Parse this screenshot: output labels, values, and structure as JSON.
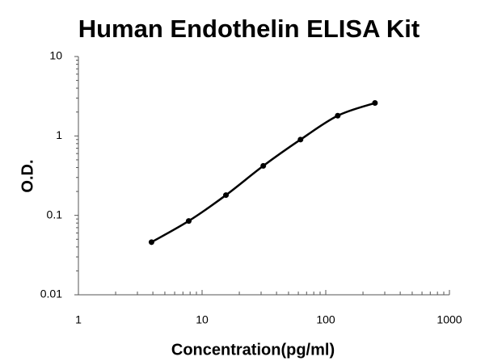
{
  "chart_data": {
    "type": "scatter",
    "title": "Human Endothelin ELISA Kit",
    "x_label": "Concentration(pg/ml)",
    "y_label": "O.D.",
    "x": [
      3.9,
      7.8,
      15.6,
      31.25,
      62.5,
      125,
      250
    ],
    "series": [
      {
        "color": "#000000",
        "values": [
          0.046,
          0.085,
          0.18,
          0.42,
          0.9,
          1.8,
          2.6
        ]
      }
    ],
    "xlim": [
      1,
      1000
    ],
    "ylim": [
      0.01,
      10
    ],
    "xticks": [
      1,
      10,
      100,
      1000
    ],
    "yticks": [
      0.01,
      0.1,
      1,
      10
    ],
    "x_log": true,
    "y_log": true,
    "fit_line": true
  }
}
